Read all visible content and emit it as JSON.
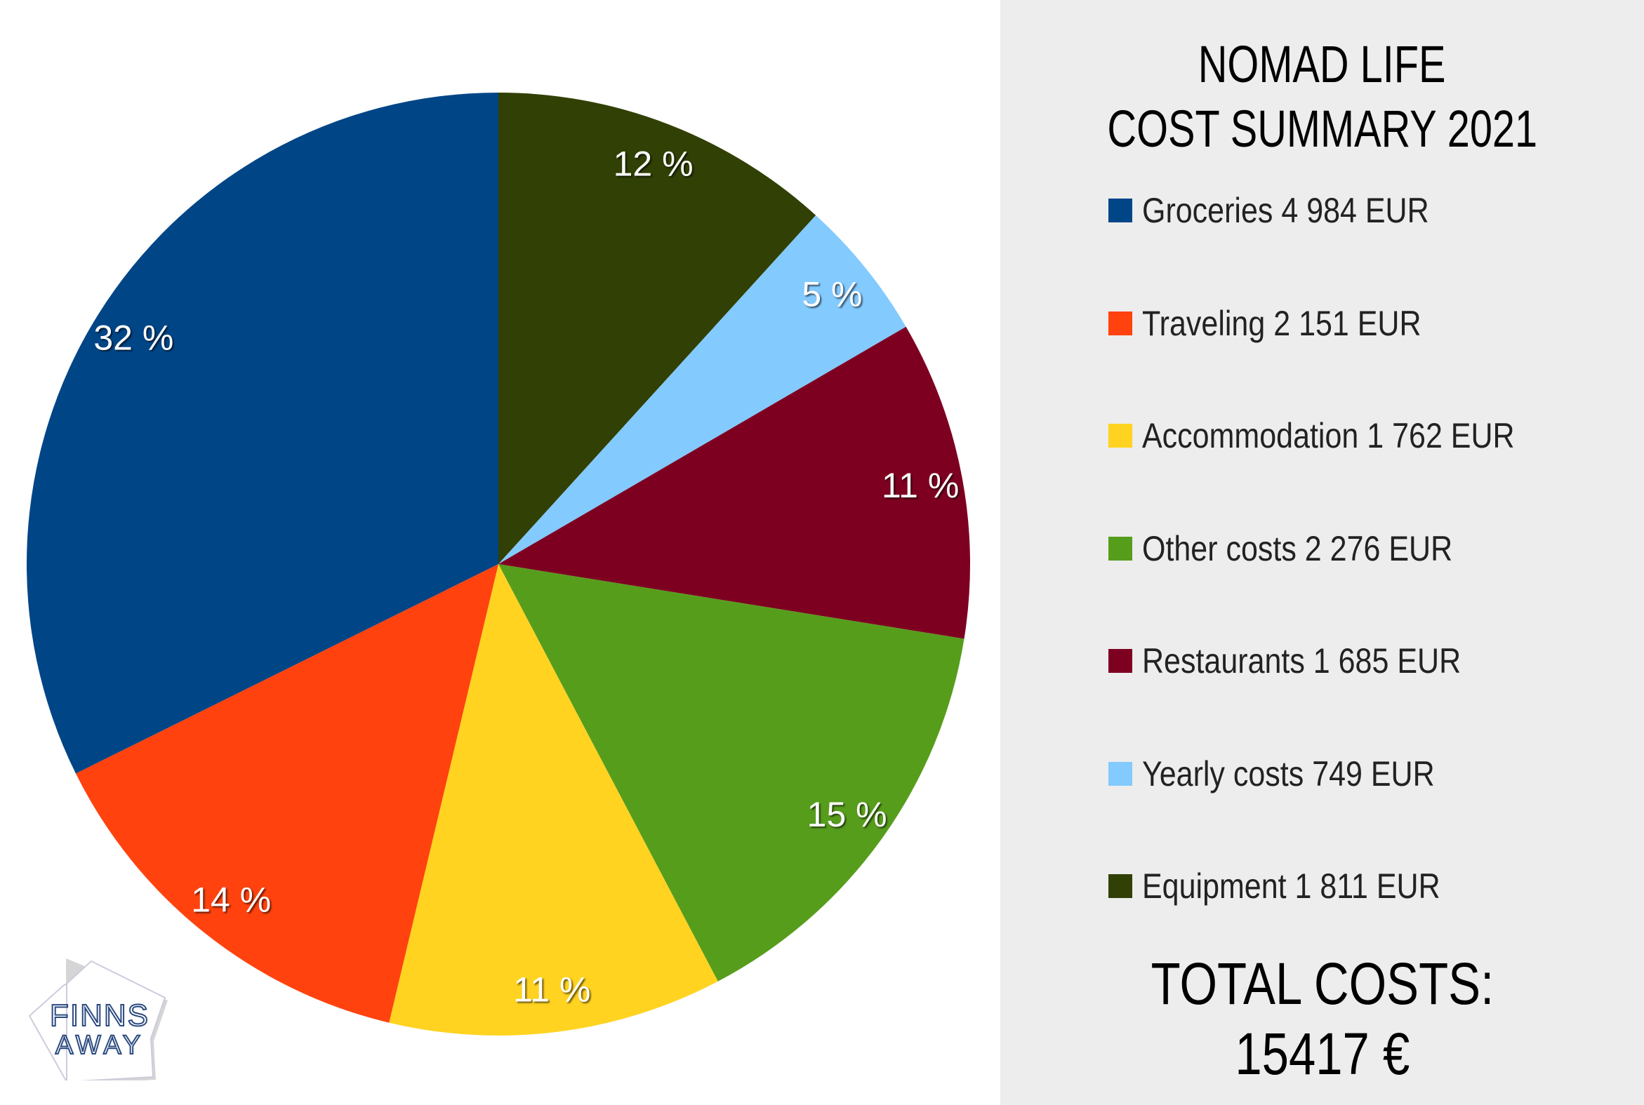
{
  "title_lines": [
    "NOMAD LIFE",
    "COST SUMMARY 2021"
  ],
  "total": {
    "label": "TOTAL COSTS:",
    "value": "15417 €"
  },
  "logo": {
    "line1": "FINNS",
    "line2": "AWAY"
  },
  "chart_data": {
    "type": "pie",
    "title": "NOMAD LIFE COST SUMMARY 2021",
    "legend_position": "right",
    "start": "top, clockwise",
    "slices": [
      {
        "name": "Groceries",
        "value": 4984,
        "unit": "EUR",
        "legend": "Groceries 4 984 EUR",
        "label": "32 %",
        "color": "#004586"
      },
      {
        "name": "Traveling",
        "value": 2151,
        "unit": "EUR",
        "legend": "Traveling 2 151 EUR",
        "label": "14 %",
        "color": "#ff420e"
      },
      {
        "name": "Accommodation",
        "value": 1762,
        "unit": "EUR",
        "legend": "Accommodation 1 762 EUR",
        "label": "11 %",
        "color": "#ffd320"
      },
      {
        "name": "Other costs",
        "value": 2276,
        "unit": "EUR",
        "legend": "Other costs 2 276 EUR",
        "label": "15 %",
        "color": "#579d1c"
      },
      {
        "name": "Restaurants",
        "value": 1685,
        "unit": "EUR",
        "legend": "Restaurants 1 685 EUR",
        "label": "11 %",
        "color": "#7e0021"
      },
      {
        "name": "Yearly costs",
        "value": 749,
        "unit": "EUR",
        "legend": "Yearly costs 749 EUR",
        "label": "5 %",
        "color": "#83caff"
      },
      {
        "name": "Equipment",
        "value": 1811,
        "unit": "EUR",
        "legend": "Equipment 1 811 EUR",
        "label": "12 %",
        "color": "#314004"
      }
    ]
  }
}
